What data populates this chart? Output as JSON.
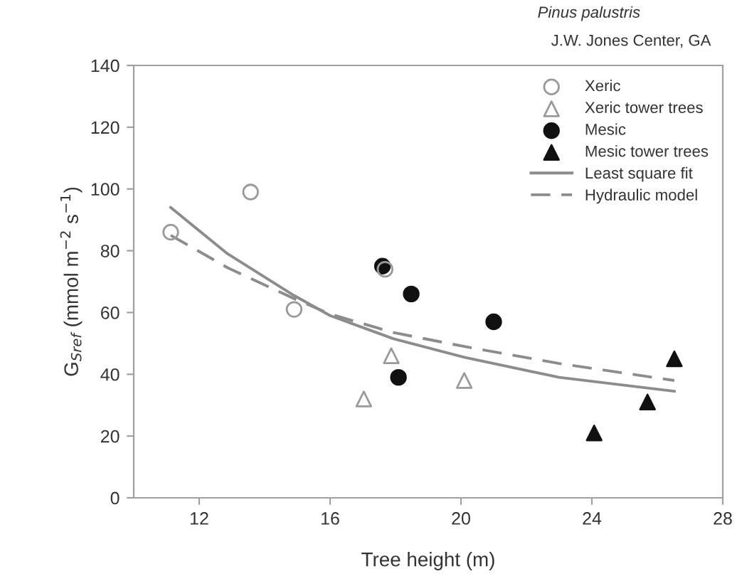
{
  "chart_data": {
    "type": "scatter",
    "xlabel": "Tree height (m)",
    "ylabel": "G$_{Sref}$ (mmol m$^{−2}$ s$^{−1}$)",
    "annotations": [
      "Pinus palustris",
      "J.W. Jones Center, GA"
    ],
    "xlim": [
      10,
      28
    ],
    "xticks": [
      12,
      16,
      20,
      24,
      28
    ],
    "ylim": [
      0,
      140
    ],
    "yticks": [
      0,
      20,
      40,
      60,
      80,
      100,
      120,
      140
    ],
    "grid": false,
    "legend": "top right",
    "series": [
      {
        "name": "Xeric",
        "marker": "circle",
        "color": "#9a9a9a",
        "x": [
          11.13,
          13.57,
          14.9,
          17.68
        ],
        "values": [
          86,
          99,
          61,
          74
        ]
      },
      {
        "name": "Xeric tower trees",
        "marker": "triangle",
        "color": "#9a9a9a",
        "x": [
          17.03,
          17.87,
          20.1
        ],
        "values": [
          32,
          46,
          38
        ]
      },
      {
        "name": "Mesic",
        "marker": "circle",
        "color": "#111111",
        "x": [
          17.6,
          18.48,
          18.09,
          21.0
        ],
        "values": [
          75,
          66,
          39,
          57
        ]
      },
      {
        "name": "Mesic tower trees",
        "marker": "triangle",
        "color": "#111111",
        "x": [
          24.07,
          25.7,
          26.52
        ],
        "values": [
          21,
          31,
          45
        ]
      },
      {
        "name": "Least square fit",
        "type": "line",
        "line_style": "solid",
        "marker": "none",
        "color": "#8c8c8c",
        "x": [
          11.13,
          12.87,
          14.9,
          16.0,
          17.94,
          20.1,
          23.0,
          26.52
        ],
        "values": [
          94,
          79,
          65.5,
          59,
          51.5,
          45.5,
          39,
          34.5
        ]
      },
      {
        "name": "Hydraulic model",
        "type": "line",
        "line_style": "dashed",
        "marker": "none",
        "color": "#8c8c8c",
        "x": [
          11.13,
          12.87,
          14.9,
          16.0,
          17.94,
          20.1,
          23.0,
          26.52
        ],
        "values": [
          85,
          74.5,
          64.5,
          59.5,
          53.5,
          49,
          43.5,
          38
        ]
      }
    ]
  }
}
